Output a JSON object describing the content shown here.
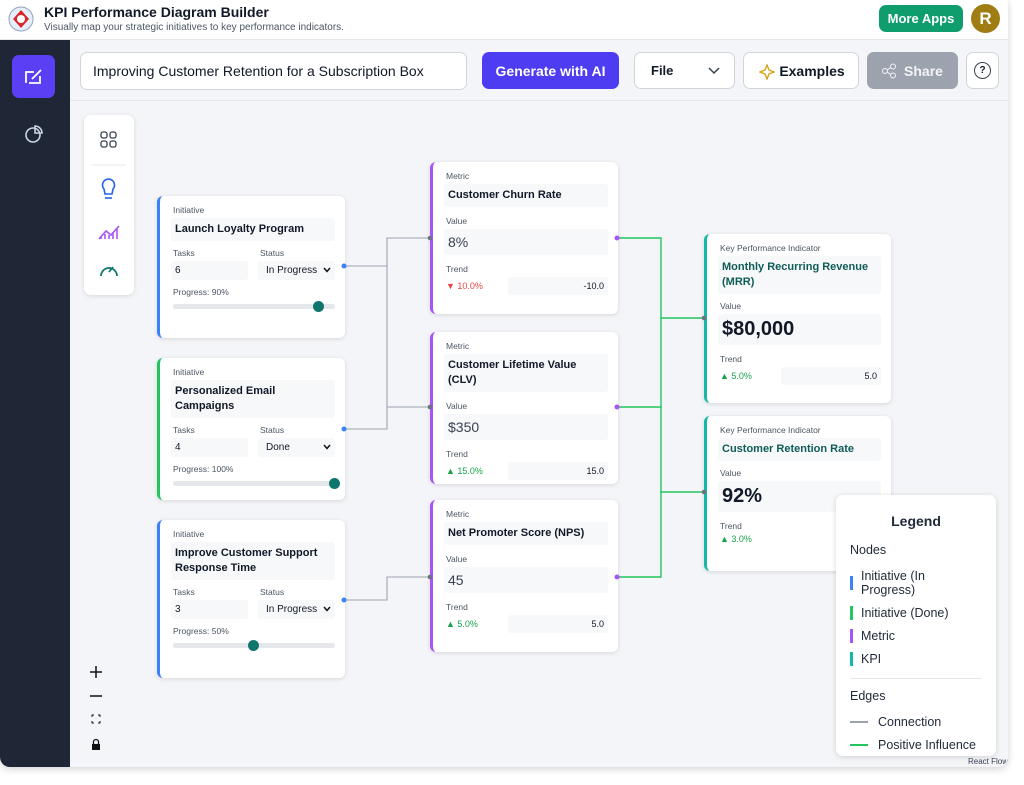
{
  "header": {
    "title": "KPI Performance Diagram Builder",
    "subtitle": "Visually map your strategic initiatives to key performance indicators.",
    "more_apps": "More Apps",
    "avatar": "R"
  },
  "toolbar": {
    "prompt": "Improving Customer Retention for a Subscription Box",
    "generate": "Generate with AI",
    "file": "File",
    "examples": "Examples",
    "share": "Share",
    "help": "?"
  },
  "initiatives": [
    {
      "label": "Initiative",
      "title": "Launch Loyalty Program",
      "tasks_label": "Tasks",
      "tasks": 6,
      "status_label": "Status",
      "status": "In Progress",
      "progress_label": "Progress: 90%",
      "progress": 90,
      "color": "#3b82f6"
    },
    {
      "label": "Initiative",
      "title": "Personalized Email Campaigns",
      "tasks_label": "Tasks",
      "tasks": 4,
      "status_label": "Status",
      "status": "Done",
      "progress_label": "Progress: 100%",
      "progress": 100,
      "color": "#22c55e"
    },
    {
      "label": "Initiative",
      "title": "Improve Customer Support Response Time",
      "tasks_label": "Tasks",
      "tasks": 3,
      "status_label": "Status",
      "status": "In Progress",
      "progress_label": "Progress: 50%",
      "progress": 50,
      "color": "#3b82f6"
    }
  ],
  "metrics": [
    {
      "label": "Metric",
      "title": "Customer Churn Rate",
      "value_label": "Value",
      "value": "8%",
      "trend_label": "Trend",
      "trend": "▼ 10.0%",
      "change": "-10.0",
      "trend_color": "#ef4444",
      "color": "#a855f7"
    },
    {
      "label": "Metric",
      "title": "Customer Lifetime Value (CLV)",
      "value_label": "Value",
      "value": "$350",
      "trend_label": "Trend",
      "trend": "▲ 15.0%",
      "change": "15.0",
      "trend_color": "#16a34a",
      "color": "#a855f7"
    },
    {
      "label": "Metric",
      "title": "Net Promoter Score (NPS)",
      "value_label": "Value",
      "value": "45",
      "trend_label": "Trend",
      "trend": "▲ 5.0%",
      "change": "5.0",
      "trend_color": "#16a34a",
      "color": "#a855f7"
    }
  ],
  "kpis": [
    {
      "label": "Key Performance Indicator",
      "title": "Monthly Recurring Revenue (MRR)",
      "value_label": "Value",
      "value": "$80,000",
      "trend_label": "Trend",
      "trend": "▲ 5.0%",
      "change": "5.0",
      "trend_color": "#16a34a",
      "color": "#14b8a6"
    },
    {
      "label": "Key Performance Indicator",
      "title": "Customer Retention Rate",
      "value_label": "Value",
      "value": "92%",
      "trend_label": "Trend",
      "trend": "▲ 3.0%",
      "trend_color": "#16a34a",
      "color": "#14b8a6"
    }
  ],
  "legend": {
    "title": "Legend",
    "nodes_heading": "Nodes",
    "nodes": [
      {
        "label": "Initiative (In Progress)",
        "color": "#3b82f6"
      },
      {
        "label": "Initiative (Done)",
        "color": "#22c55e"
      },
      {
        "label": "Metric",
        "color": "#a855f7"
      },
      {
        "label": "KPI",
        "color": "#14b8a6"
      }
    ],
    "edges_heading": "Edges",
    "edges": [
      {
        "label": "Connection",
        "color": "#9ca3af"
      },
      {
        "label": "Positive Influence",
        "color": "#22c55e"
      }
    ]
  },
  "attribution": "React Flow"
}
